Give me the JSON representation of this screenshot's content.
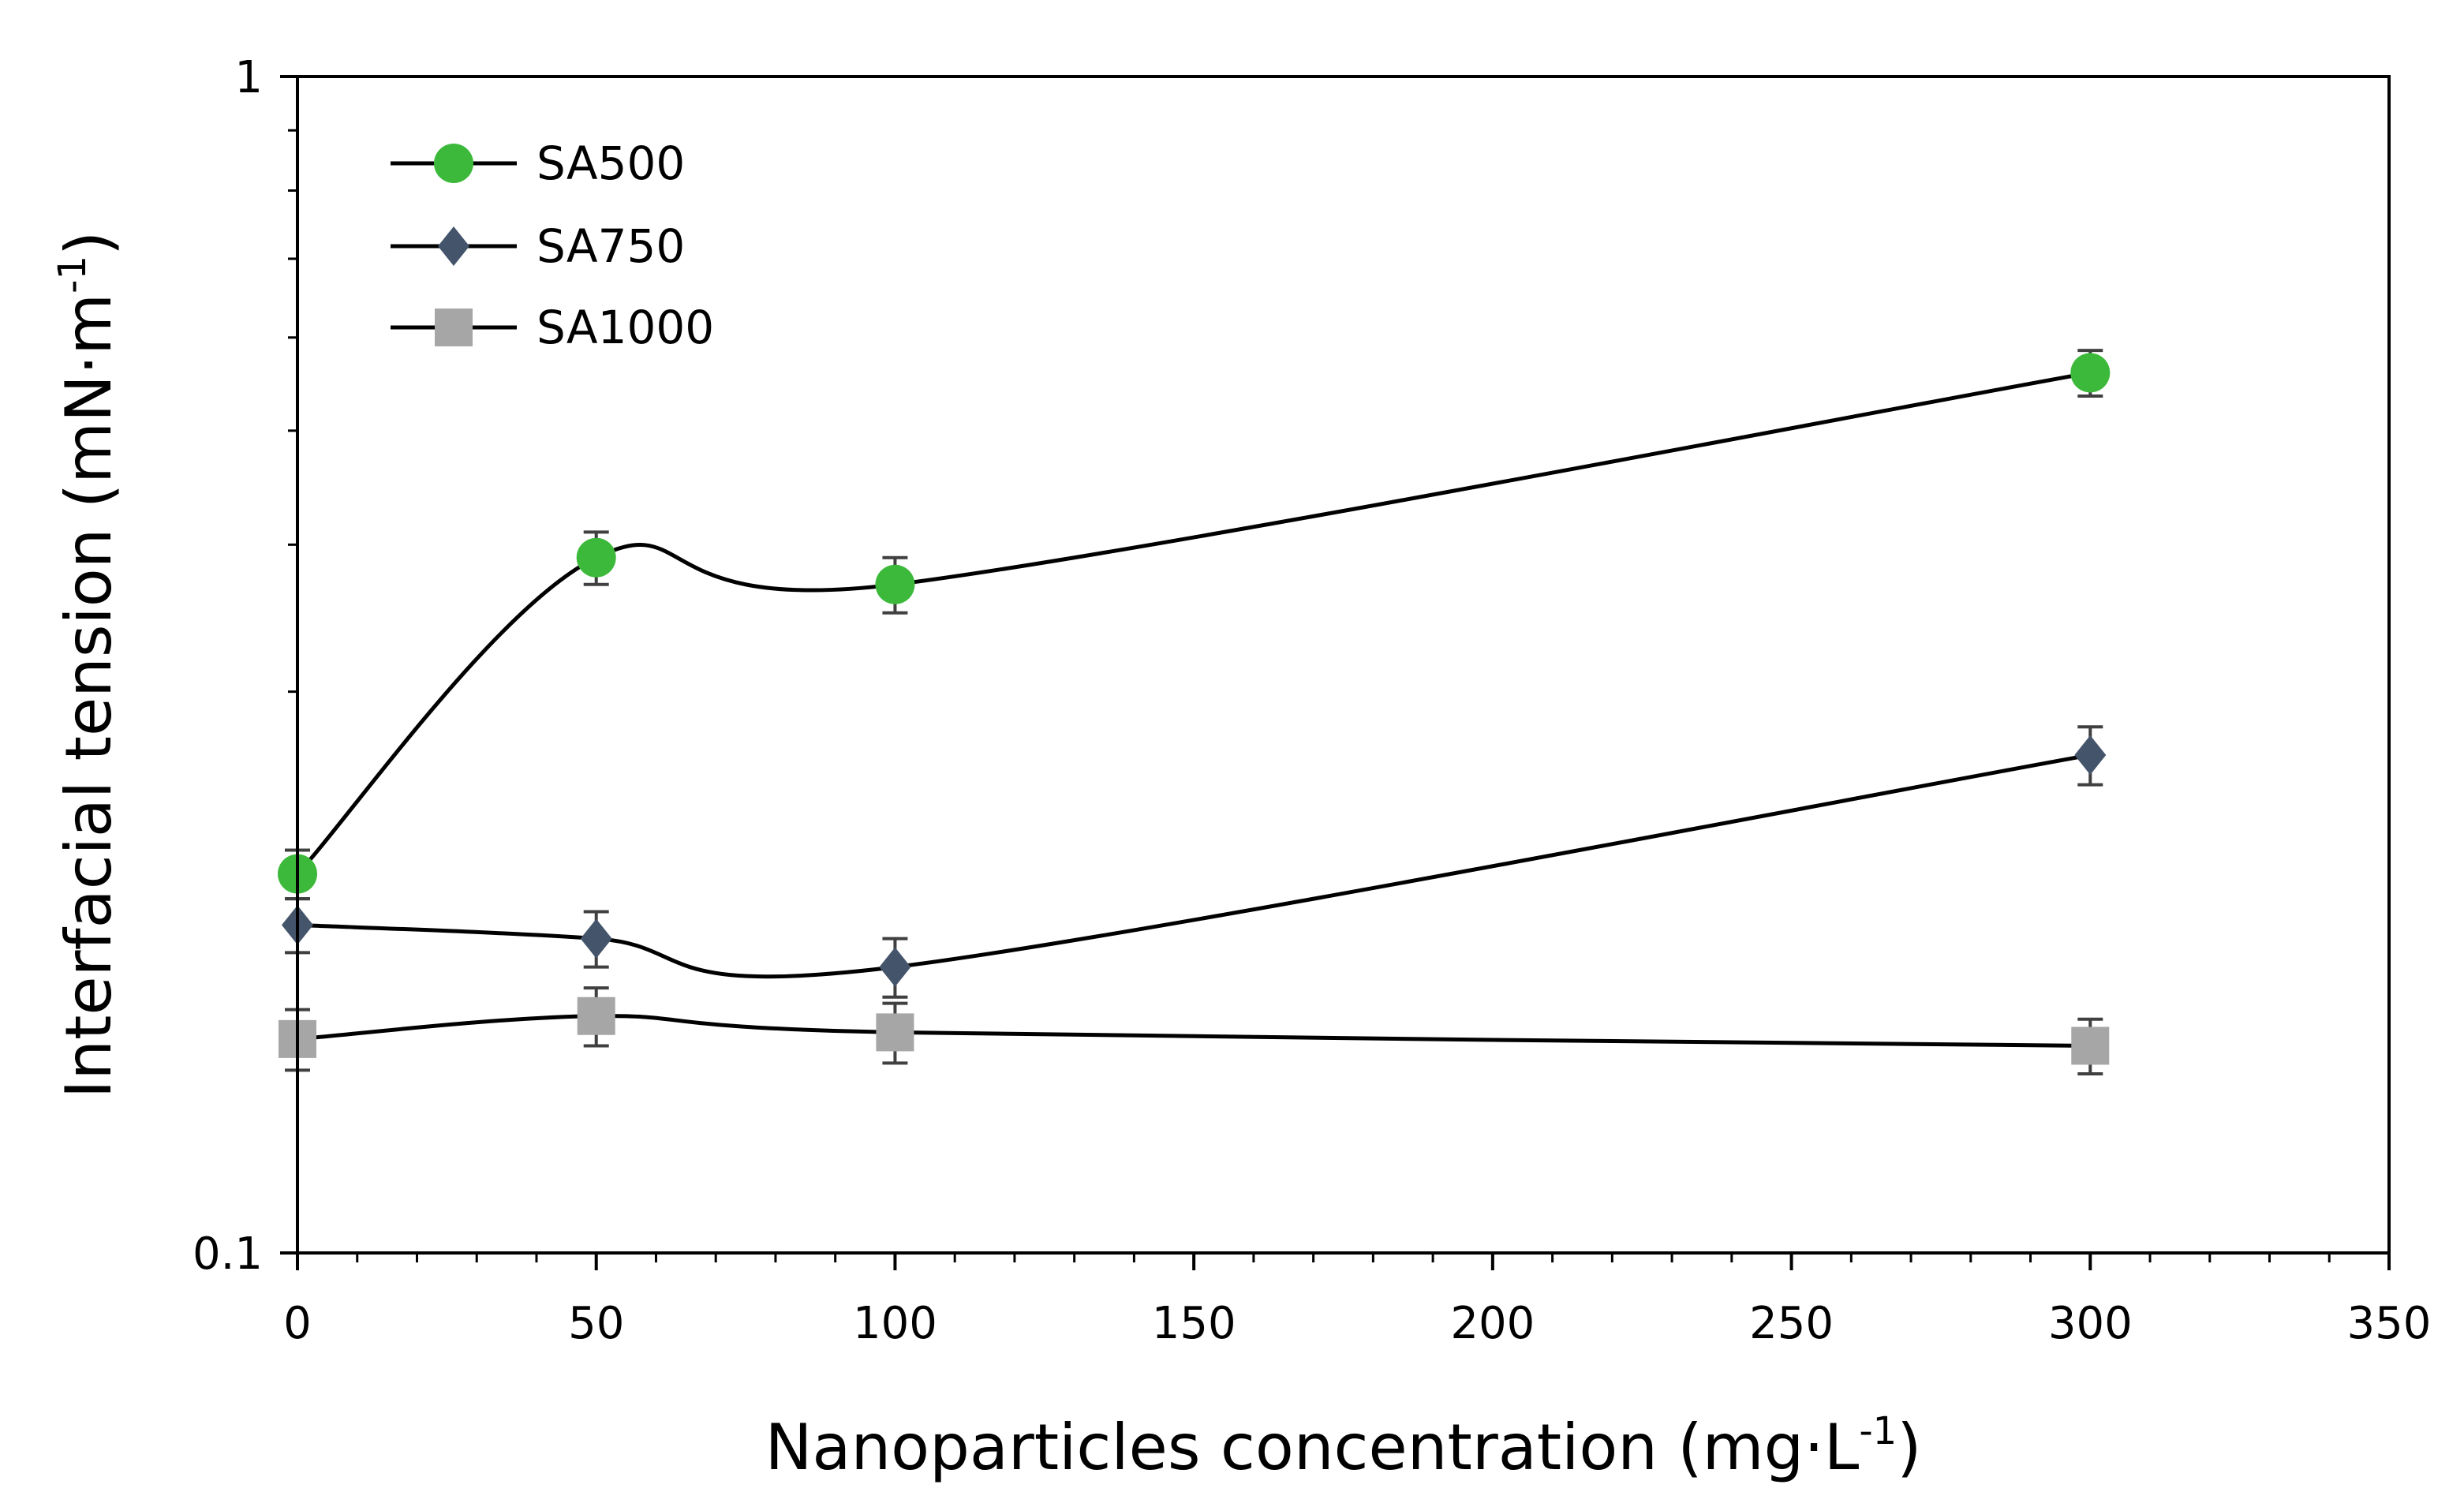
{
  "chart_data": {
    "type": "line",
    "x_scale": "linear",
    "y_scale": "log",
    "xlabel_main": "Nanoparticles concentration (mg·L",
    "xlabel_sup": "-1",
    "xlabel_close": ")",
    "ylabel_main": "Interfacial tension (mN·m",
    "ylabel_sup": "-1",
    "ylabel_close": ")",
    "xlim": [
      0,
      350
    ],
    "ylim": [
      0.1,
      1
    ],
    "x_ticks": [
      0,
      50,
      100,
      150,
      200,
      250,
      300,
      350
    ],
    "x_tick_labels": [
      "0",
      "50",
      "100",
      "150",
      "200",
      "250",
      "300",
      "350"
    ],
    "y_ticks": [
      0.1,
      1
    ],
    "y_tick_labels": [
      "0.1",
      "1"
    ],
    "grid": false,
    "legend_position": "top-left",
    "x": [
      0,
      50,
      100,
      300
    ],
    "series": [
      {
        "name": "SA500",
        "marker": "circle",
        "color": "#3cb93a",
        "values": [
          0.21,
          0.39,
          0.37,
          0.56
        ],
        "errors": [
          0.01,
          0.02,
          0.02,
          0.025
        ]
      },
      {
        "name": "SA750",
        "marker": "diamond",
        "color": "#44546a",
        "values": [
          0.19,
          0.185,
          0.175,
          0.265
        ],
        "errors": [
          0.01,
          0.01,
          0.01,
          0.015
        ]
      },
      {
        "name": "SA1000",
        "marker": "square",
        "color": "#a6a6a6",
        "values": [
          0.152,
          0.159,
          0.154,
          0.15
        ],
        "errors": [
          0.009,
          0.009,
          0.009,
          0.008
        ]
      }
    ]
  }
}
